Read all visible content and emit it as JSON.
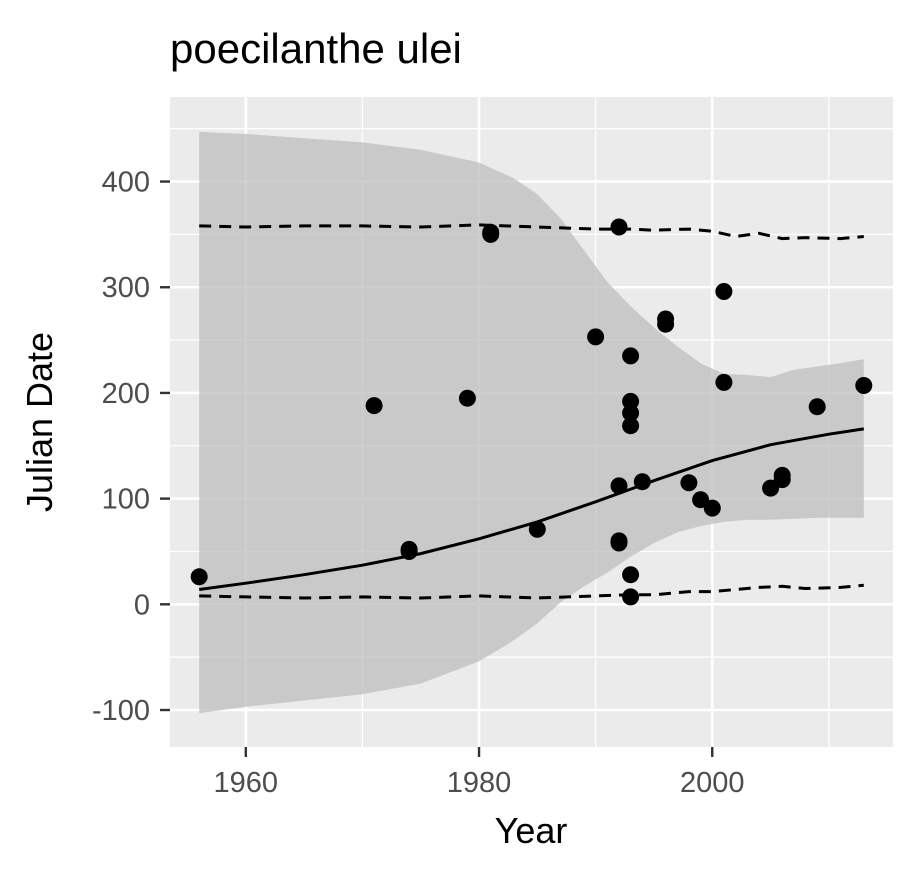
{
  "chart_data": {
    "type": "scatter",
    "title": "poecilanthe ulei",
    "xlabel": "Year",
    "ylabel": "Julian Date",
    "xlim": [
      1953.5,
      2015.5
    ],
    "ylim": [
      -135,
      480
    ],
    "x_ticks": [
      1960,
      1980,
      2000
    ],
    "x_tick_labels": [
      "1960",
      "1980",
      "2000"
    ],
    "y_ticks": [
      -100,
      0,
      100,
      200,
      300,
      400
    ],
    "y_tick_labels": [
      "-100",
      "0",
      "100",
      "200",
      "300",
      "400"
    ],
    "grid": true,
    "legend": "none",
    "colors": {
      "panel": "#ebebeb",
      "grid": "#ffffff",
      "band": "#bdbdbd",
      "points": "#000000",
      "lines": "#000000",
      "tick_label": "#4d4d4d"
    },
    "points": [
      {
        "x": 1956,
        "y": 26
      },
      {
        "x": 1971,
        "y": 188
      },
      {
        "x": 1974,
        "y": 50
      },
      {
        "x": 1974,
        "y": 52
      },
      {
        "x": 1979,
        "y": 195
      },
      {
        "x": 1981,
        "y": 350
      },
      {
        "x": 1981,
        "y": 352
      },
      {
        "x": 1985,
        "y": 71
      },
      {
        "x": 1990,
        "y": 253
      },
      {
        "x": 1992,
        "y": 357
      },
      {
        "x": 1992,
        "y": 112
      },
      {
        "x": 1992,
        "y": 60
      },
      {
        "x": 1992,
        "y": 58
      },
      {
        "x": 1993,
        "y": 235
      },
      {
        "x": 1993,
        "y": 192
      },
      {
        "x": 1993,
        "y": 181
      },
      {
        "x": 1993,
        "y": 169
      },
      {
        "x": 1993,
        "y": 28
      },
      {
        "x": 1993,
        "y": 7
      },
      {
        "x": 1994,
        "y": 116
      },
      {
        "x": 1996,
        "y": 270
      },
      {
        "x": 1996,
        "y": 265
      },
      {
        "x": 1998,
        "y": 115
      },
      {
        "x": 1999,
        "y": 99
      },
      {
        "x": 2000,
        "y": 91
      },
      {
        "x": 2001,
        "y": 296
      },
      {
        "x": 2001,
        "y": 210
      },
      {
        "x": 2005,
        "y": 110
      },
      {
        "x": 2006,
        "y": 122
      },
      {
        "x": 2006,
        "y": 118
      },
      {
        "x": 2009,
        "y": 187
      },
      {
        "x": 2013,
        "y": 207
      }
    ],
    "fit_line": {
      "x": [
        1956,
        1960,
        1965,
        1970,
        1975,
        1980,
        1985,
        1990,
        1995,
        2000,
        2005,
        2010,
        2013
      ],
      "y": [
        14,
        20,
        28,
        37,
        48,
        62,
        78,
        97,
        117,
        136,
        151,
        161,
        166
      ]
    },
    "confidence_band": {
      "x": [
        1956,
        1960,
        1965,
        1970,
        1975,
        1980,
        1983,
        1985,
        1987,
        1989,
        1991,
        1993,
        1995,
        1997,
        1999,
        2001,
        2003,
        2005,
        2007,
        2009,
        2011,
        2013
      ],
      "upper": [
        447,
        445,
        441,
        437,
        430,
        418,
        403,
        388,
        365,
        335,
        305,
        282,
        262,
        244,
        228,
        218,
        217,
        215,
        222,
        225,
        228,
        232
      ],
      "lower": [
        -103,
        -97,
        -91,
        -85,
        -75,
        -54,
        -34,
        -18,
        2,
        17,
        30,
        45,
        58,
        68,
        74,
        78,
        80,
        80,
        81,
        82,
        82,
        82
      ]
    },
    "upper_quantile_line": {
      "x": [
        1956,
        1960,
        1965,
        1970,
        1975,
        1980,
        1985,
        1990,
        1993,
        1995,
        1998,
        2000,
        2002,
        2004,
        2006,
        2008,
        2011,
        2013
      ],
      "y": [
        358,
        357,
        358,
        358,
        357,
        359,
        357,
        355,
        355,
        354,
        355,
        353,
        348,
        351,
        346,
        347,
        346,
        348
      ]
    },
    "lower_quantile_line": {
      "x": [
        1956,
        1960,
        1965,
        1970,
        1975,
        1980,
        1985,
        1990,
        1993,
        1995,
        1998,
        2000,
        2002,
        2004,
        2006,
        2008,
        2011,
        2013
      ],
      "y": [
        8,
        7,
        6,
        7,
        6,
        8,
        6,
        8,
        9,
        9,
        12,
        12,
        14,
        16,
        17,
        15,
        16,
        18
      ]
    }
  }
}
